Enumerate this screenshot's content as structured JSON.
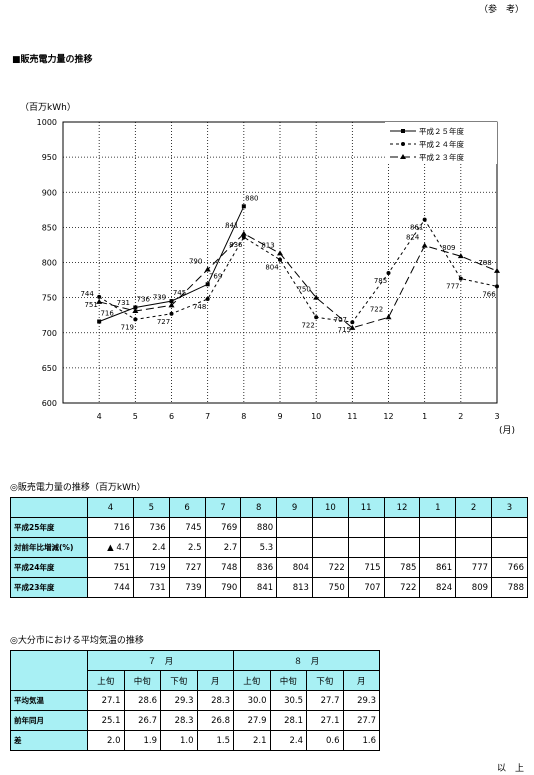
{
  "header": {
    "reference": "（参　考）",
    "closing": "以　上"
  },
  "chart_section": {
    "title": "■販売電力量の推移"
  },
  "chart_data": {
    "type": "line",
    "ylabel": "（百万kWh）",
    "xlabel": "(月)",
    "categories": [
      "4",
      "5",
      "6",
      "7",
      "8",
      "9",
      "10",
      "11",
      "12",
      "1",
      "2",
      "3"
    ],
    "ylim": [
      600,
      1000
    ],
    "yticks": [
      600,
      650,
      700,
      750,
      800,
      850,
      900,
      950,
      1000
    ],
    "legend": "top-right",
    "series": [
      {
        "name": "平成２５年度",
        "values": [
          716,
          736,
          745,
          769,
          880,
          null,
          null,
          null,
          null,
          null,
          null,
          null
        ],
        "style": "solid",
        "marker": "square"
      },
      {
        "name": "平成２４年度",
        "values": [
          751,
          719,
          727,
          748,
          836,
          804,
          722,
          715,
          785,
          861,
          777,
          766
        ],
        "style": "dashed",
        "marker": "circle"
      },
      {
        "name": "平成２３年度",
        "values": [
          744,
          731,
          739,
          790,
          841,
          813,
          750,
          707,
          722,
          824,
          809,
          788
        ],
        "style": "longdash",
        "marker": "triangle"
      }
    ]
  },
  "sales_table": {
    "title": "◎販売電力量の推移（百万kWh）",
    "months": [
      "4",
      "5",
      "6",
      "7",
      "8",
      "9",
      "10",
      "11",
      "12",
      "1",
      "2",
      "3"
    ],
    "rows": [
      {
        "label": "平成25年度",
        "cells": [
          "716",
          "736",
          "745",
          "769",
          "880",
          "",
          "",
          "",
          "",
          "",
          "",
          ""
        ]
      },
      {
        "label": "対前年比増減(%)",
        "cells": [
          "▲ 4.7",
          "2.4",
          "2.5",
          "2.7",
          "5.3",
          "",
          "",
          "",
          "",
          "",
          "",
          ""
        ]
      },
      {
        "label": "平成24年度",
        "cells": [
          "751",
          "719",
          "727",
          "748",
          "836",
          "804",
          "722",
          "715",
          "785",
          "861",
          "777",
          "766"
        ]
      },
      {
        "label": "平成23年度",
        "cells": [
          "744",
          "731",
          "739",
          "790",
          "841",
          "813",
          "750",
          "707",
          "722",
          "824",
          "809",
          "788"
        ]
      }
    ]
  },
  "temp_table": {
    "title": "◎大分市における平均気温の推移",
    "month_headers": [
      "７　月",
      "８　月"
    ],
    "sub_headers": [
      "上旬",
      "中旬",
      "下旬",
      "月",
      "上旬",
      "中旬",
      "下旬",
      "月"
    ],
    "rows": [
      {
        "label": "平均気温",
        "cells": [
          "27.1",
          "28.6",
          "29.3",
          "28.3",
          "30.0",
          "30.5",
          "27.7",
          "29.3"
        ]
      },
      {
        "label": "前年同月",
        "cells": [
          "25.1",
          "26.7",
          "28.3",
          "26.8",
          "27.9",
          "28.1",
          "27.1",
          "27.7"
        ]
      },
      {
        "label": "差",
        "cells": [
          "2.0",
          "1.9",
          "1.0",
          "1.5",
          "2.1",
          "2.4",
          "0.6",
          "1.6"
        ]
      }
    ]
  }
}
